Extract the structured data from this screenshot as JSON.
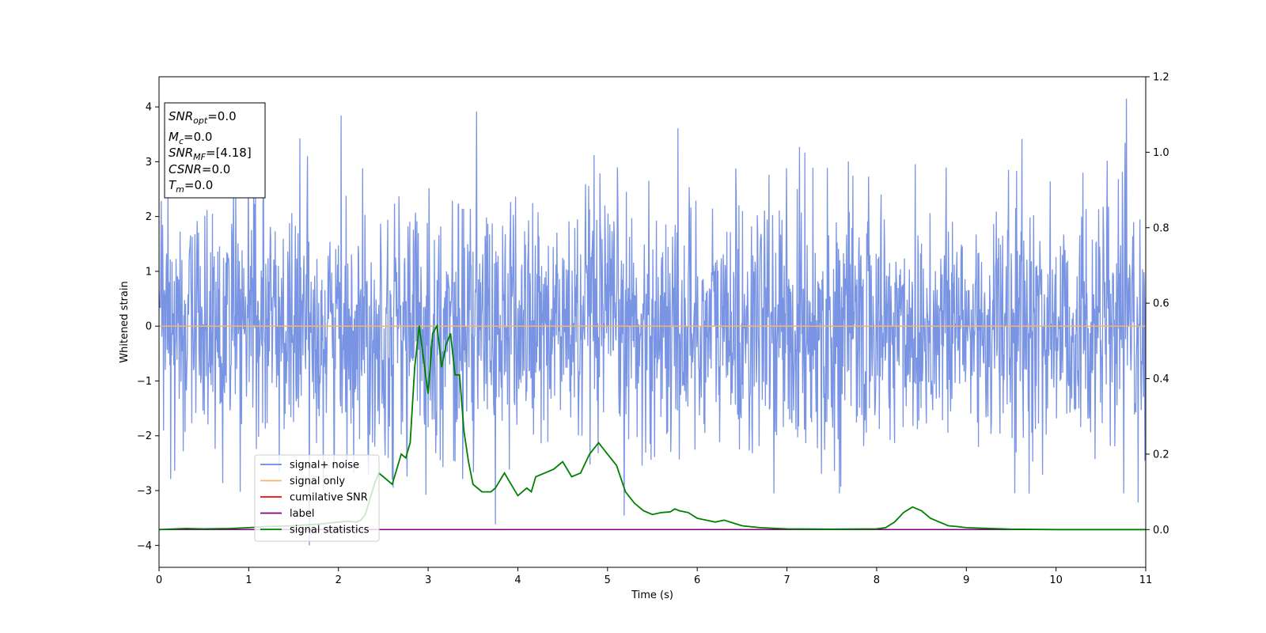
{
  "chart_data": {
    "type": "line",
    "xlabel": "Time (s)",
    "ylabel_left": "Whitened strain",
    "xlim": [
      0,
      11
    ],
    "ylim_left": [
      -4.4,
      4.55
    ],
    "ylim_right": [
      -0.1,
      1.2
    ],
    "x_ticks": [
      0,
      1,
      2,
      3,
      4,
      5,
      6,
      7,
      8,
      9,
      10,
      11
    ],
    "y_ticks_left": [
      -4,
      -3,
      -2,
      -1,
      0,
      1,
      2,
      3,
      4
    ],
    "y_ticks_right": [
      0.0,
      0.2,
      0.4,
      0.6,
      0.8,
      1.0,
      1.2
    ],
    "grid": false,
    "legend_position": "lower-left",
    "stats_box": {
      "position": "top-left",
      "lines": [
        {
          "base": "SNR",
          "sub": "opt",
          "value": "=0.0"
        },
        {
          "base": "M",
          "sub": "c",
          "value": "=0.0"
        },
        {
          "base": "SNR",
          "sub": "MF",
          "value": "=[4.18]"
        },
        {
          "base": "CSNR",
          "sub": "",
          "value": "=0.0"
        },
        {
          "base": "T",
          "sub": "m",
          "value": "=0.0"
        }
      ]
    },
    "series": [
      {
        "name": "signal+ noise",
        "axis": "left",
        "color": "#6a88e0",
        "kind": "noise",
        "sample_rate_hz": 200,
        "std": 1.15,
        "range": [
          -4.0,
          4.15
        ]
      },
      {
        "name": "signal only",
        "axis": "left",
        "color": "#f5b56e",
        "x": [
          0,
          11
        ],
        "y": [
          0,
          0
        ]
      },
      {
        "name": "cumilative SNR",
        "axis": "left",
        "color": "#ff0000",
        "x": [],
        "y": []
      },
      {
        "name": "label",
        "axis": "right",
        "color": "#800080",
        "x": [
          0,
          11
        ],
        "y": [
          0,
          0
        ]
      },
      {
        "name": "signal statistics",
        "axis": "right",
        "color": "#008000",
        "x": [
          0,
          0.3,
          0.5,
          0.8,
          1.0,
          1.2,
          1.5,
          1.8,
          2.0,
          2.1,
          2.2,
          2.25,
          2.3,
          2.4,
          2.45,
          2.5,
          2.6,
          2.7,
          2.75,
          2.8,
          2.85,
          2.9,
          2.95,
          3.0,
          3.05,
          3.1,
          3.15,
          3.2,
          3.25,
          3.3,
          3.35,
          3.4,
          3.45,
          3.5,
          3.6,
          3.7,
          3.75,
          3.8,
          3.85,
          3.9,
          4.0,
          4.1,
          4.15,
          4.2,
          4.3,
          4.4,
          4.5,
          4.6,
          4.7,
          4.8,
          4.9,
          5.0,
          5.1,
          5.2,
          5.3,
          5.4,
          5.5,
          5.6,
          5.7,
          5.75,
          5.8,
          5.9,
          6.0,
          6.1,
          6.2,
          6.3,
          6.5,
          6.7,
          7.0,
          7.5,
          8.0,
          8.1,
          8.2,
          8.3,
          8.4,
          8.5,
          8.6,
          8.7,
          8.8,
          8.9,
          9.0,
          9.5,
          10,
          11
        ],
        "y": [
          0.0,
          0.003,
          0.002,
          0.003,
          0.005,
          0.008,
          0.01,
          0.015,
          0.02,
          0.022,
          0.02,
          0.025,
          0.04,
          0.12,
          0.15,
          0.14,
          0.12,
          0.2,
          0.19,
          0.23,
          0.43,
          0.54,
          0.45,
          0.36,
          0.52,
          0.54,
          0.43,
          0.49,
          0.52,
          0.41,
          0.41,
          0.26,
          0.18,
          0.12,
          0.1,
          0.1,
          0.11,
          0.13,
          0.15,
          0.13,
          0.09,
          0.11,
          0.1,
          0.14,
          0.15,
          0.16,
          0.18,
          0.14,
          0.15,
          0.2,
          0.23,
          0.2,
          0.17,
          0.1,
          0.07,
          0.05,
          0.04,
          0.045,
          0.047,
          0.055,
          0.05,
          0.045,
          0.03,
          0.025,
          0.02,
          0.025,
          0.01,
          0.005,
          0.002,
          0.001,
          0.002,
          0.005,
          0.02,
          0.045,
          0.06,
          0.05,
          0.03,
          0.02,
          0.01,
          0.008,
          0.005,
          0.001,
          0.0,
          0.0
        ]
      }
    ]
  }
}
